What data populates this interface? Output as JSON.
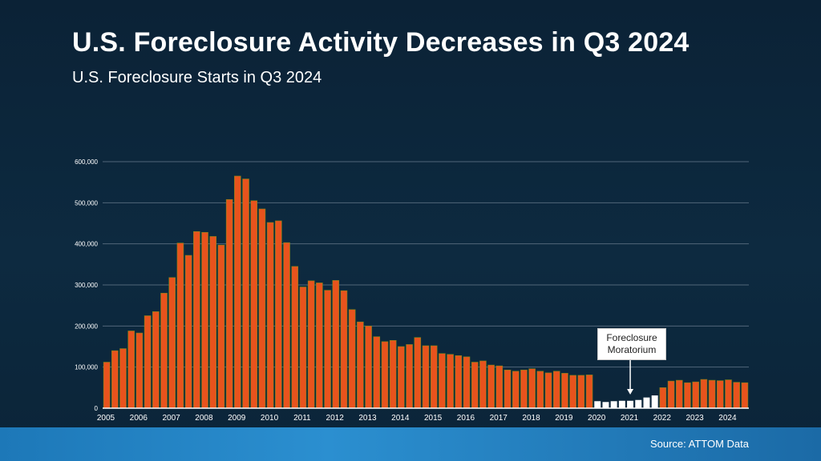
{
  "title": "U.S. Foreclosure Activity Decreases in Q3 2024",
  "subtitle": "U.S. Foreclosure Starts in Q3 2024",
  "source": "Source: ATTOM Data",
  "colors": {
    "bar_main": "#e8531d",
    "bar_moratorium": "#ffffff",
    "bar_outline": "#7a8a1a",
    "grid": "#51667a"
  },
  "chart_data": {
    "type": "bar",
    "ylim": [
      0,
      600000
    ],
    "yticks": [
      0,
      100000,
      200000,
      300000,
      400000,
      500000,
      600000
    ],
    "ytick_labels": [
      "0",
      "100,000",
      "200,000",
      "300,000",
      "400,000",
      "500,000",
      "600,000"
    ],
    "x_year_labels": [
      "2005",
      "2006",
      "2007",
      "2008",
      "2009",
      "2010",
      "2011",
      "2012",
      "2013",
      "2014",
      "2015",
      "2016",
      "2017",
      "2018",
      "2019",
      "2020",
      "2021",
      "2022",
      "2023",
      "2024"
    ],
    "grid": true,
    "annotation": {
      "line1": "Foreclosure",
      "line2": "Moratorium"
    },
    "series": [
      {
        "values": [
          112000,
          140000,
          145000,
          188000,
          183000,
          225000,
          235000,
          280000,
          318000,
          402000,
          372000,
          430000,
          428000,
          418000,
          397000,
          508000,
          565000,
          558000,
          505000,
          485000,
          452000,
          456000,
          403000,
          345000,
          295000,
          310000,
          305000,
          287000,
          311000,
          286000,
          240000,
          210000,
          200000,
          174000,
          162000,
          165000,
          150000,
          155000,
          172000,
          152000,
          152000,
          133000,
          131000,
          128000,
          125000,
          112000,
          115000,
          105000,
          103000,
          93000,
          90000,
          93000,
          96000,
          90000,
          86000,
          90000,
          85000,
          80000,
          80000,
          81000,
          17000,
          15000,
          17000,
          18000,
          18000,
          20000,
          26000,
          31000,
          50000,
          66000,
          68000,
          62000,
          64000,
          70000,
          68000,
          67000,
          69000,
          63000,
          62000
        ],
        "moratorium_start_index": 60,
        "moratorium_end_index": 67
      }
    ]
  }
}
